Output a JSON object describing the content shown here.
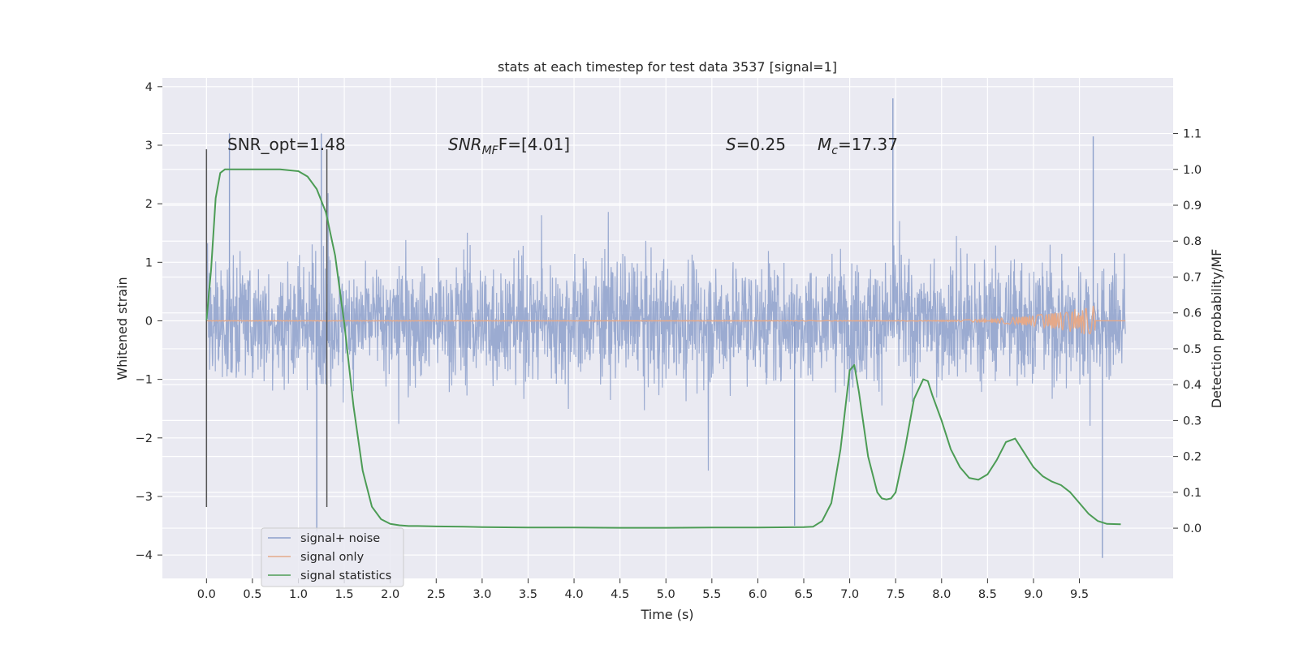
{
  "chart_data": {
    "type": "line",
    "title": "stats at each timestep for test data 3537 [signal=1]",
    "xlabel": "Time (s)",
    "ylabel": "Whitened strain",
    "y2label": "Detection probability/MF",
    "xlim": [
      -0.48,
      10.52
    ],
    "ylim": [
      -4.4,
      4.15
    ],
    "y2lim": [
      -0.14,
      1.255
    ],
    "xticks": [
      "0.0",
      "0.5",
      "1.0",
      "1.5",
      "2.0",
      "2.5",
      "3.0",
      "3.5",
      "4.0",
      "4.5",
      "5.0",
      "5.5",
      "6.0",
      "6.5",
      "7.0",
      "7.5",
      "8.0",
      "8.5",
      "9.0",
      "9.5"
    ],
    "yticks": [
      "4",
      "3",
      "2",
      "1",
      "0",
      "−1",
      "−2",
      "−3",
      "−4"
    ],
    "y2ticks": [
      "1.1",
      "1.0",
      "0.9",
      "0.8",
      "0.7",
      "0.6",
      "0.5",
      "0.4",
      "0.3",
      "0.2",
      "0.1",
      "0.0"
    ],
    "grid": true,
    "legend_position": "lower-left",
    "annotations": {
      "snr_opt": "SNR_opt=1.48",
      "snr_mf_main": "SNR",
      "snr_mf_sub": "MF",
      "snr_mf_rest": "F=[4.01]",
      "s_label": "S",
      "s_value": "=0.25",
      "mc_main": "M",
      "mc_sub": "c",
      "mc_value": "=17.37"
    },
    "vertical_markers_x": [
      0.0,
      1.31
    ],
    "series": [
      {
        "name": "signal+ noise",
        "color": "#8da0cb",
        "description": "noisy whitened strain, 0.0–10.0 s, core band about ±1.1 with spikes to about ±3, extremes 3.8 at 7.47 s, −4.05 at 9.75 s, −3.6 at 1.2 s"
      },
      {
        "name": "signal only",
        "color": "#e5a989",
        "description": "flat near 0 with a chirp growing to about ±0.28 at 9.65 s"
      },
      {
        "name": "signal statistics",
        "color": "#4c9c55",
        "axis": "right",
        "x": [
          0.0,
          0.05,
          0.1,
          0.15,
          0.2,
          0.3,
          0.5,
          0.8,
          1.0,
          1.1,
          1.2,
          1.3,
          1.4,
          1.5,
          1.6,
          1.7,
          1.8,
          1.9,
          2.0,
          2.1,
          2.2,
          2.3,
          2.5,
          2.8,
          3.0,
          3.5,
          4.0,
          4.5,
          5.0,
          5.5,
          6.0,
          6.5,
          6.6,
          6.7,
          6.8,
          6.9,
          7.0,
          7.05,
          7.1,
          7.2,
          7.3,
          7.35,
          7.4,
          7.45,
          7.5,
          7.6,
          7.7,
          7.8,
          7.85,
          7.9,
          8.0,
          8.1,
          8.2,
          8.3,
          8.4,
          8.5,
          8.6,
          8.7,
          8.8,
          8.9,
          9.0,
          9.1,
          9.2,
          9.3,
          9.4,
          9.5,
          9.6,
          9.7,
          9.8,
          9.95
        ],
        "y": [
          0.58,
          0.72,
          0.92,
          0.99,
          1.0,
          1.0,
          1.0,
          1.0,
          0.995,
          0.98,
          0.945,
          0.88,
          0.76,
          0.57,
          0.34,
          0.16,
          0.06,
          0.025,
          0.012,
          0.008,
          0.006,
          0.006,
          0.005,
          0.004,
          0.003,
          0.002,
          0.002,
          0.001,
          0.001,
          0.002,
          0.002,
          0.003,
          0.004,
          0.02,
          0.07,
          0.22,
          0.44,
          0.455,
          0.38,
          0.2,
          0.1,
          0.083,
          0.08,
          0.083,
          0.1,
          0.22,
          0.36,
          0.415,
          0.41,
          0.37,
          0.3,
          0.22,
          0.17,
          0.14,
          0.135,
          0.15,
          0.19,
          0.24,
          0.25,
          0.21,
          0.17,
          0.145,
          0.13,
          0.12,
          0.1,
          0.07,
          0.04,
          0.02,
          0.012,
          0.011
        ]
      }
    ]
  }
}
